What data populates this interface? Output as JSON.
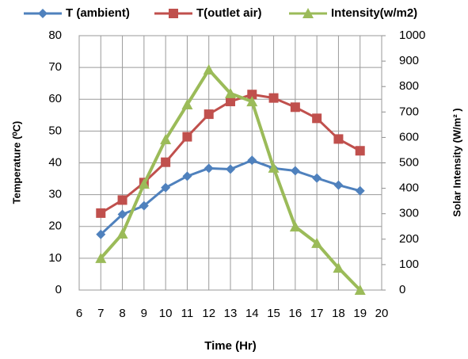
{
  "chart_data": {
    "type": "line",
    "x_label": "Time (Hr)",
    "y_label": "Temperature (⁰C)",
    "y2_label": "Solar Intensity (W/m² )",
    "x": [
      7,
      8,
      9,
      10,
      11,
      12,
      13,
      14,
      15,
      16,
      17,
      18,
      19
    ],
    "series": [
      {
        "name": "T (ambient)",
        "color": "#4f81bd",
        "marker": "diamond",
        "values": [
          17.5,
          23.8,
          26.5,
          32.2,
          35.8,
          38.3,
          38,
          40.8,
          38.3,
          37.5,
          35.2,
          33,
          31.2
        ]
      },
      {
        "name": "T(outlet air)",
        "color": "#c0504d",
        "marker": "square",
        "values": [
          24.2,
          28.3,
          33.8,
          40.2,
          48.2,
          55.3,
          59.3,
          61.5,
          60.4,
          57.5,
          54,
          47.5,
          43.8
        ]
      },
      {
        "name": "Intensity(w/m2)",
        "color": "#9bbb59",
        "marker": "triangle",
        "axis": "y2",
        "values": [
          125,
          221,
          417,
          592,
          729,
          866,
          773,
          741,
          480,
          249,
          184,
          87,
          0
        ]
      }
    ],
    "xlim": [
      6,
      20
    ],
    "xticks": [
      6,
      7,
      8,
      9,
      10,
      11,
      12,
      13,
      14,
      15,
      16,
      17,
      18,
      19,
      20
    ],
    "ylim": [
      0,
      80
    ],
    "yticks": [
      0,
      10,
      20,
      30,
      40,
      50,
      60,
      70,
      80
    ],
    "y2lim": [
      0,
      1000
    ],
    "y2ticks": [
      0,
      100,
      200,
      300,
      400,
      500,
      600,
      700,
      800,
      900,
      1000
    ],
    "grid": true,
    "legend": "top"
  }
}
